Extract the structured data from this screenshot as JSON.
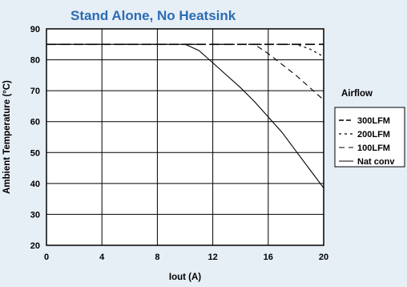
{
  "chart_data": {
    "type": "line",
    "title": "Stand Alone, No Heatsink",
    "xlabel": "Iout  (A)",
    "ylabel": "Ambient Temperature (°C)",
    "xlim": [
      0,
      20
    ],
    "ylim": [
      20,
      90
    ],
    "x_ticks": [
      0,
      4,
      8,
      12,
      16,
      20
    ],
    "y_ticks": [
      20,
      30,
      40,
      50,
      60,
      70,
      80,
      90
    ],
    "grid": true,
    "legend": {
      "title": "Airflow",
      "position": "right"
    },
    "series": [
      {
        "name": "300LFM",
        "style": "long-dash",
        "x": [
          0,
          20
        ],
        "y": [
          85,
          85
        ]
      },
      {
        "name": "200LFM",
        "style": "dotted",
        "x": [
          0,
          18,
          19,
          20
        ],
        "y": [
          85,
          85,
          83.5,
          81
        ]
      },
      {
        "name": "100LFM",
        "style": "dashed",
        "x": [
          0,
          15,
          16,
          17,
          18,
          19,
          20
        ],
        "y": [
          85,
          85,
          82,
          78.5,
          75,
          71,
          67
        ]
      },
      {
        "name": "Nat conv",
        "style": "solid",
        "x": [
          0,
          10,
          11,
          12,
          13,
          14,
          15,
          16,
          17,
          18,
          19,
          20
        ],
        "y": [
          85,
          85,
          83,
          79,
          75,
          71,
          66.5,
          61.5,
          56.5,
          50.5,
          44.5,
          38.5
        ]
      }
    ]
  },
  "colors": {
    "title": "#2b6cb3",
    "background": "#e6eef6",
    "plot": "#ffffff"
  }
}
